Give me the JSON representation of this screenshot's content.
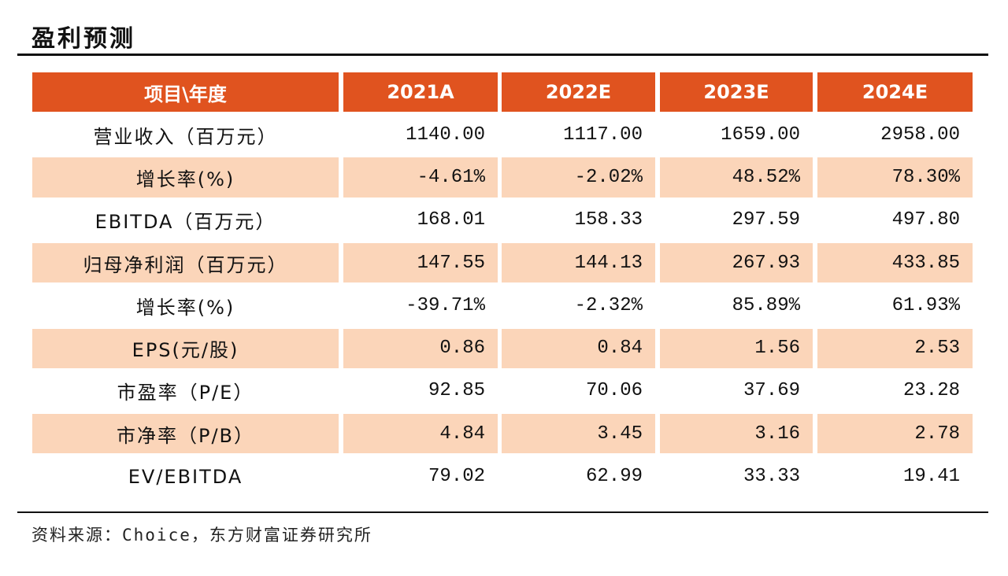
{
  "header": {
    "title": "盈利预测"
  },
  "table": {
    "columns": [
      "项目\\年度",
      "2021A",
      "2022E",
      "2023E",
      "2024E"
    ],
    "rows": [
      [
        "营业收入（百万元）",
        "1140.00",
        "1117.00",
        "1659.00",
        "2958.00"
      ],
      [
        "增长率(%)",
        "-4.61%",
        "-2.02%",
        "48.52%",
        "78.30%"
      ],
      [
        "EBITDA（百万元）",
        "168.01",
        "158.33",
        "297.59",
        "497.80"
      ],
      [
        "归母净利润（百万元）",
        "147.55",
        "144.13",
        "267.93",
        "433.85"
      ],
      [
        "增长率(%)",
        "-39.71%",
        "-2.32%",
        "85.89%",
        "61.93%"
      ],
      [
        "EPS(元/股)",
        "0.86",
        "0.84",
        "1.56",
        "2.53"
      ],
      [
        "市盈率（P/E）",
        "92.85",
        "70.06",
        "37.69",
        "23.28"
      ],
      [
        "市净率（P/B）",
        "4.84",
        "3.45",
        "3.16",
        "2.78"
      ],
      [
        "EV/EBITDA",
        "79.02",
        "62.99",
        "33.33",
        "19.41"
      ]
    ]
  },
  "footer": {
    "source": "资料来源：Choice，东方财富证券研究所"
  }
}
